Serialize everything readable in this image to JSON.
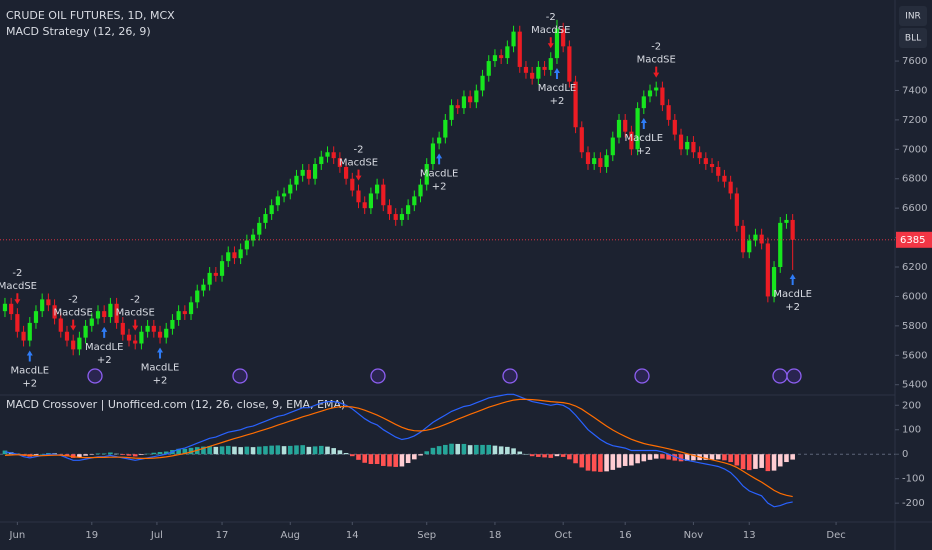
{
  "header": {
    "symbol": "CRUDE OIL FUTURES, 1D, MCX",
    "currency": "INR",
    "unit": "BLL"
  },
  "chart_data": [
    {
      "type": "candlestick",
      "title": "MACD Strategy (12, 26, 9)",
      "xlim": [
        -0.8,
        143.5
      ],
      "ylim": [
        5330,
        8015
      ],
      "yticks": [
        5400,
        5600,
        5800,
        6000,
        6200,
        6400,
        6600,
        6800,
        7000,
        7200,
        7400,
        7600
      ],
      "up_color": "#17e61e",
      "down_color": "#ec1c24",
      "open": [
        5900,
        5950,
        5880,
        5760,
        5700,
        5820,
        5900,
        5980,
        5940,
        5850,
        5760,
        5700,
        5640,
        5720,
        5800,
        5850,
        5900,
        5860,
        5950,
        5820,
        5740,
        5700,
        5680,
        5760,
        5800,
        5760,
        5720,
        5780,
        5840,
        5900,
        5880,
        5960,
        6040,
        6080,
        6160,
        6140,
        6240,
        6300,
        6260,
        6320,
        6380,
        6420,
        6500,
        6560,
        6620,
        6680,
        6700,
        6760,
        6820,
        6860,
        6800,
        6900,
        6950,
        6980,
        6940,
        6880,
        6800,
        6720,
        6640,
        6600,
        6700,
        6760,
        6620,
        6560,
        6520,
        6560,
        6620,
        6680,
        6760,
        6900,
        7040,
        7080,
        7200,
        7300,
        7280,
        7360,
        7320,
        7400,
        7500,
        7600,
        7640,
        7620,
        7700,
        7800,
        7560,
        7520,
        7480,
        7560,
        7540,
        7620,
        7820,
        7700,
        7460,
        7150,
        6980,
        6900,
        6940,
        6880,
        6960,
        7080,
        7200,
        7120,
        7000,
        7280,
        7360,
        7400,
        7420,
        7300,
        7200,
        7100,
        7000,
        7050,
        6980,
        6940,
        6900,
        6880,
        6820,
        6780,
        6700,
        6480,
        6300,
        6380,
        6420,
        6360,
        6000,
        6200,
        6500,
        6520
      ],
      "high": [
        5990,
        5990,
        5920,
        5800,
        5860,
        5940,
        6020,
        6020,
        5980,
        5890,
        5800,
        5740,
        5760,
        5840,
        5890,
        5940,
        5940,
        5990,
        5990,
        5860,
        5780,
        5740,
        5800,
        5840,
        5840,
        5800,
        5820,
        5880,
        5940,
        5940,
        6000,
        6080,
        6120,
        6200,
        6200,
        6280,
        6340,
        6340,
        6360,
        6420,
        6460,
        6540,
        6600,
        6660,
        6720,
        6740,
        6800,
        6860,
        6900,
        6900,
        6940,
        6990,
        7020,
        7020,
        6980,
        6920,
        6840,
        6760,
        6680,
        6740,
        6800,
        6800,
        6660,
        6600,
        6600,
        6660,
        6720,
        6800,
        6940,
        7080,
        7120,
        7240,
        7340,
        7340,
        7400,
        7400,
        7440,
        7540,
        7640,
        7680,
        7680,
        7740,
        7840,
        7840,
        7600,
        7560,
        7600,
        7600,
        7660,
        7880,
        7860,
        7740,
        7500,
        7190,
        7020,
        6980,
        6980,
        7000,
        7120,
        7240,
        7240,
        7160,
        7320,
        7400,
        7440,
        7460,
        7460,
        7340,
        7240,
        7140,
        7090,
        7090,
        7020,
        6980,
        6940,
        6920,
        6860,
        6820,
        6740,
        6520,
        6420,
        6460,
        6460,
        6400,
        6240,
        6540,
        6560,
        6560
      ],
      "low": [
        5860,
        5840,
        5720,
        5660,
        5660,
        5780,
        5860,
        5900,
        5810,
        5720,
        5660,
        5600,
        5600,
        5680,
        5760,
        5810,
        5820,
        5820,
        5780,
        5700,
        5660,
        5640,
        5640,
        5720,
        5720,
        5680,
        5680,
        5740,
        5800,
        5840,
        5840,
        5920,
        6000,
        6040,
        6100,
        6100,
        6200,
        6220,
        6220,
        6280,
        6340,
        6380,
        6460,
        6520,
        6580,
        6640,
        6660,
        6720,
        6780,
        6760,
        6760,
        6860,
        6910,
        6900,
        6840,
        6760,
        6680,
        6600,
        6560,
        6560,
        6660,
        6580,
        6520,
        6480,
        6480,
        6520,
        6580,
        6640,
        6720,
        6860,
        7000,
        7040,
        7160,
        7240,
        7240,
        7280,
        7280,
        7360,
        7460,
        7560,
        7580,
        7580,
        7660,
        7520,
        7480,
        7440,
        7440,
        7500,
        7500,
        7580,
        7660,
        7420,
        7110,
        6940,
        6860,
        6860,
        6840,
        6840,
        6920,
        7040,
        7080,
        6960,
        6960,
        7240,
        7320,
        7360,
        7260,
        7160,
        7060,
        6960,
        6960,
        6940,
        6900,
        6860,
        6840,
        6780,
        6740,
        6660,
        6440,
        6260,
        6260,
        6340,
        6320,
        5960,
        5960,
        6160,
        6460,
        6180
      ],
      "close": [
        5950,
        5880,
        5760,
        5700,
        5820,
        5900,
        5980,
        5940,
        5850,
        5760,
        5700,
        5640,
        5720,
        5800,
        5850,
        5900,
        5860,
        5950,
        5820,
        5740,
        5700,
        5680,
        5760,
        5800,
        5760,
        5720,
        5780,
        5840,
        5900,
        5880,
        5960,
        6040,
        6080,
        6160,
        6140,
        6240,
        6300,
        6260,
        6320,
        6380,
        6420,
        6500,
        6560,
        6620,
        6680,
        6700,
        6760,
        6820,
        6860,
        6800,
        6900,
        6950,
        6980,
        6940,
        6880,
        6800,
        6720,
        6640,
        6600,
        6700,
        6760,
        6620,
        6560,
        6520,
        6560,
        6620,
        6680,
        6760,
        6900,
        7040,
        7080,
        7200,
        7300,
        7280,
        7360,
        7320,
        7400,
        7500,
        7600,
        7640,
        7620,
        7700,
        7800,
        7560,
        7520,
        7480,
        7560,
        7540,
        7620,
        7820,
        7700,
        7460,
        7150,
        6980,
        6900,
        6940,
        6880,
        6960,
        7080,
        7200,
        7120,
        7000,
        7280,
        7360,
        7400,
        7420,
        7300,
        7200,
        7100,
        7000,
        7050,
        6980,
        6940,
        6900,
        6880,
        6820,
        6780,
        6700,
        6480,
        6300,
        6380,
        6420,
        6360,
        6000,
        6200,
        6500,
        6520,
        6385
      ],
      "last_price": 6385,
      "last_price_color": "#f23645",
      "short_signals": [
        {
          "index": 2,
          "label": "MacdSE",
          "qty": "-2"
        },
        {
          "index": 11,
          "label": "MacdSE",
          "qty": "-2"
        },
        {
          "index": 21,
          "label": "MacdSE",
          "qty": "-2"
        },
        {
          "index": 57,
          "label": "MacdSE",
          "qty": "-2"
        },
        {
          "index": 88,
          "label": "MacdSE",
          "qty": "-2"
        },
        {
          "index": 105,
          "label": "MacdSE",
          "qty": "-2"
        }
      ],
      "long_signals": [
        {
          "index": 4,
          "label": "MacdLE",
          "qty": "+2"
        },
        {
          "index": 16,
          "label": "MacdLE",
          "qty": "+2"
        },
        {
          "index": 25,
          "label": "MacdLE",
          "qty": "+2"
        },
        {
          "index": 70,
          "label": "MacdLE",
          "qty": "+2"
        },
        {
          "index": 89,
          "label": "MacdLE",
          "qty": "+2"
        },
        {
          "index": 103,
          "label": "MacdLE",
          "qty": "+2"
        },
        {
          "index": 127,
          "label": "MacdLE",
          "qty": "+2"
        }
      ]
    },
    {
      "type": "macd",
      "title": "MACD Crossover | Unofficed.com (12, 26, close, 9, EMA, EMA)",
      "xlim": [
        -0.8,
        143.5
      ],
      "ylim": [
        -277,
        242
      ],
      "yticks": [
        -200,
        -100,
        0,
        100,
        200
      ],
      "xticks": [
        {
          "value": 2,
          "label": "Jun"
        },
        {
          "value": 14,
          "label": "19"
        },
        {
          "value": 24.5,
          "label": "Jul"
        },
        {
          "value": 35,
          "label": "17"
        },
        {
          "value": 46,
          "label": "Aug"
        },
        {
          "value": 56,
          "label": "14"
        },
        {
          "value": 68,
          "label": "Sep"
        },
        {
          "value": 79,
          "label": "18"
        },
        {
          "value": 90,
          "label": "Oct"
        },
        {
          "value": 100,
          "label": "16"
        },
        {
          "value": 111,
          "label": "Nov"
        },
        {
          "value": 120,
          "label": "13"
        },
        {
          "value": 134,
          "label": "Dec"
        }
      ],
      "series": [
        {
          "color": "#2962ff",
          "values": [
            10,
            5,
            0,
            -10,
            -15,
            -10,
            -5,
            0,
            0,
            -5,
            -15,
            -25,
            -25,
            -20,
            -15,
            -10,
            -10,
            -5,
            -10,
            -15,
            -20,
            -25,
            -20,
            -15,
            -10,
            -5,
            0,
            10,
            20,
            25,
            35,
            45,
            55,
            65,
            70,
            80,
            90,
            95,
            100,
            110,
            115,
            125,
            135,
            145,
            155,
            160,
            170,
            180,
            190,
            190,
            200,
            210,
            215,
            215,
            210,
            200,
            185,
            165,
            145,
            130,
            120,
            100,
            85,
            70,
            60,
            65,
            75,
            90,
            110,
            130,
            145,
            160,
            175,
            185,
            195,
            200,
            210,
            220,
            230,
            235,
            240,
            245,
            245,
            235,
            225,
            215,
            210,
            205,
            200,
            205,
            200,
            185,
            160,
            130,
            100,
            80,
            60,
            45,
            35,
            30,
            25,
            15,
            15,
            15,
            15,
            15,
            10,
            0,
            -10,
            -20,
            -25,
            -30,
            -35,
            -40,
            -45,
            -50,
            -60,
            -75,
            -100,
            -130,
            -150,
            -160,
            -170,
            -200,
            -215,
            -210,
            -200,
            -195
          ]
        },
        {
          "color": "#ff6d00",
          "values": [
            -5,
            -3,
            -2,
            -3,
            -5,
            -6,
            -6,
            -5,
            -4,
            -4,
            -6,
            -10,
            -13,
            -14,
            -14,
            -13,
            -13,
            -12,
            -12,
            -12,
            -14,
            -16,
            -17,
            -17,
            -16,
            -14,
            -11,
            -7,
            -2,
            3,
            9,
            16,
            24,
            32,
            40,
            48,
            56,
            64,
            71,
            79,
            86,
            94,
            102,
            110,
            119,
            127,
            136,
            144,
            153,
            160,
            168,
            176,
            184,
            190,
            194,
            195,
            193,
            188,
            180,
            170,
            160,
            148,
            135,
            122,
            110,
            101,
            96,
            95,
            98,
            104,
            112,
            122,
            132,
            143,
            153,
            163,
            172,
            182,
            192,
            200,
            208,
            215,
            221,
            224,
            224,
            223,
            221,
            218,
            215,
            213,
            211,
            206,
            197,
            184,
            167,
            150,
            132,
            115,
            99,
            85,
            73,
            61,
            52,
            44,
            38,
            33,
            28,
            22,
            16,
            9,
            2,
            -5,
            -11,
            -17,
            -23,
            -29,
            -35,
            -43,
            -54,
            -69,
            -85,
            -100,
            -114,
            -131,
            -148,
            -160,
            -168,
            -173
          ]
        }
      ],
      "histogram": [
        15,
        8,
        2,
        -7,
        -10,
        -4,
        1,
        5,
        4,
        -1,
        -9,
        -15,
        -12,
        -6,
        -1,
        3,
        3,
        7,
        2,
        -3,
        -6,
        -9,
        -3,
        2,
        6,
        9,
        11,
        17,
        22,
        22,
        26,
        29,
        31,
        33,
        30,
        32,
        34,
        31,
        29,
        31,
        29,
        31,
        33,
        35,
        36,
        33,
        34,
        36,
        37,
        30,
        32,
        34,
        31,
        25,
        16,
        5,
        -8,
        -23,
        -35,
        -40,
        -40,
        -48,
        -50,
        -52,
        -50,
        -36,
        -21,
        -5,
        12,
        26,
        33,
        38,
        43,
        42,
        42,
        37,
        38,
        38,
        38,
        35,
        32,
        30,
        24,
        11,
        1,
        -8,
        -11,
        -13,
        -15,
        -8,
        -11,
        -21,
        -37,
        -54,
        -67,
        -70,
        -72,
        -70,
        -64,
        -55,
        -48,
        -46,
        -37,
        -29,
        -23,
        -18,
        -18,
        -22,
        -26,
        -29,
        -27,
        -25,
        -24,
        -23,
        -22,
        -21,
        -25,
        -32,
        -46,
        -61,
        -65,
        -60,
        -56,
        -69,
        -67,
        -50,
        -32,
        -22
      ],
      "histogram_colors": {
        "positive_rising": "#26a69a",
        "positive_falling": "#b2dfdb",
        "negative_falling": "#ff5252",
        "negative_rising": "#ffcdd2"
      }
    }
  ]
}
